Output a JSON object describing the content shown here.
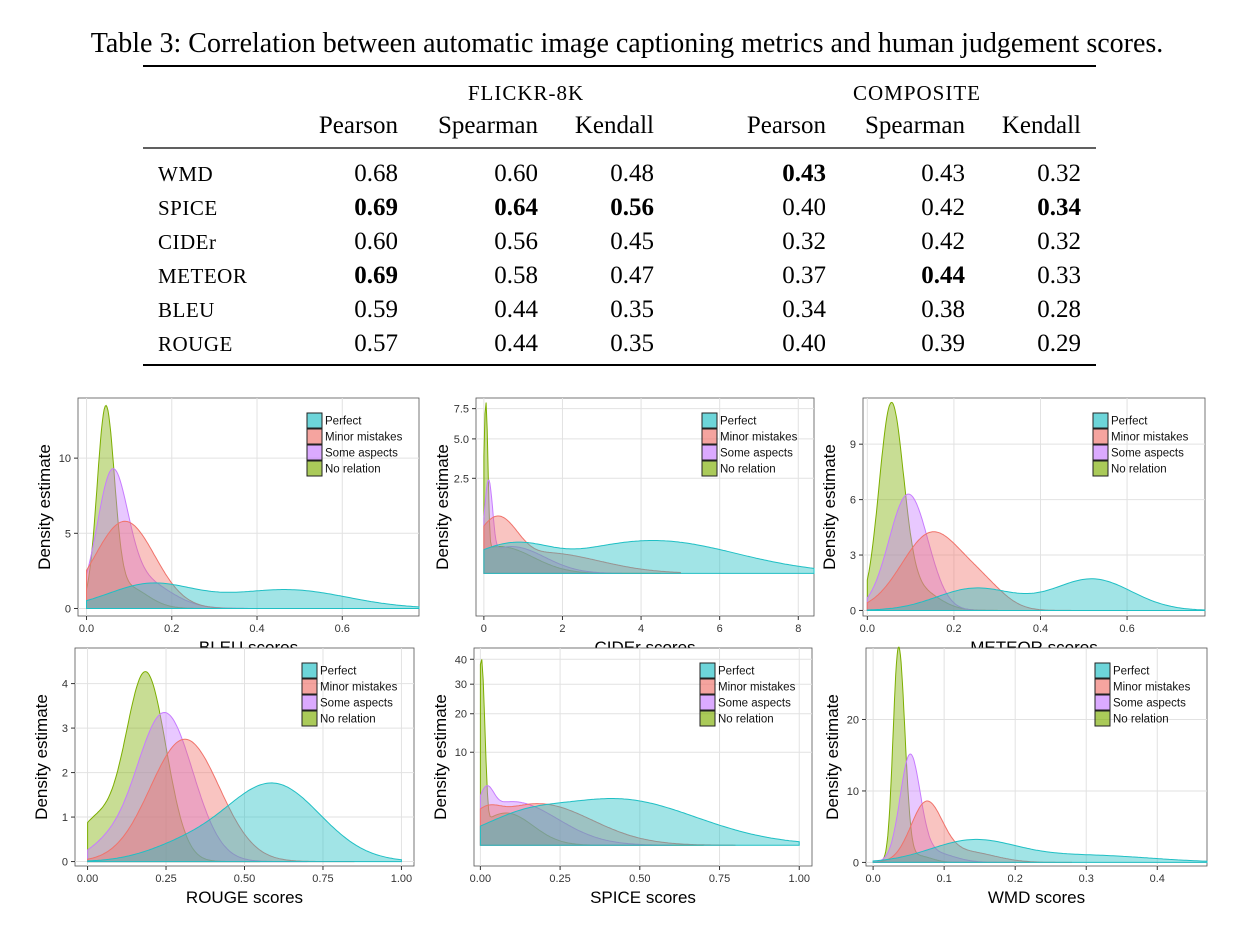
{
  "caption": "Table 3: Correlation between automatic image captioning metrics and human judgement scores.",
  "table": {
    "groups": [
      "FLICKR-8K",
      "COMPOSITE"
    ],
    "columns": [
      "Pearson",
      "Spearman",
      "Kendall",
      "Pearson",
      "Spearman",
      "Kendall"
    ],
    "rows": [
      {
        "metric": "WMD",
        "values": [
          "0.68",
          "0.60",
          "0.48",
          "0.43",
          "0.43",
          "0.32"
        ],
        "bold": [
          false,
          false,
          false,
          true,
          false,
          false
        ]
      },
      {
        "metric": "SPICE",
        "values": [
          "0.69",
          "0.64",
          "0.56",
          "0.40",
          "0.42",
          "0.34"
        ],
        "bold": [
          true,
          true,
          true,
          false,
          false,
          true
        ]
      },
      {
        "metric": "CIDEr",
        "values": [
          "0.60",
          "0.56",
          "0.45",
          "0.32",
          "0.42",
          "0.32"
        ],
        "bold": [
          false,
          false,
          false,
          false,
          false,
          false
        ]
      },
      {
        "metric": "METEOR",
        "values": [
          "0.69",
          "0.58",
          "0.47",
          "0.37",
          "0.44",
          "0.33"
        ],
        "bold": [
          true,
          false,
          false,
          false,
          true,
          false
        ]
      },
      {
        "metric": "BLEU",
        "values": [
          "0.59",
          "0.44",
          "0.35",
          "0.34",
          "0.38",
          "0.28"
        ],
        "bold": [
          false,
          false,
          false,
          false,
          false,
          false
        ]
      },
      {
        "metric": "ROUGE",
        "values": [
          "0.57",
          "0.44",
          "0.35",
          "0.40",
          "0.39",
          "0.29"
        ],
        "bold": [
          false,
          false,
          false,
          false,
          false,
          false
        ]
      }
    ]
  },
  "chart_data": [
    {
      "type": "area",
      "xlabel": "BLEU scores",
      "ylabel": "Density estimate",
      "xlim": [
        -0.02,
        0.78
      ],
      "ylim": [
        -0.5,
        14
      ],
      "xticks": [
        "0.0",
        "0.2",
        "0.4",
        "0.6"
      ],
      "yticks": [
        "0",
        "5",
        "10"
      ],
      "legend": "top-right",
      "grid": true,
      "series": [
        {
          "name": "Perfect",
          "color": "#1FBFC4",
          "peaks": [
            [
              0.15,
              1.6,
              0.1
            ],
            [
              0.47,
              1.25,
              0.14
            ]
          ],
          "xmax": 0.78
        },
        {
          "name": "Minor mistakes",
          "color": "#F0736B",
          "peaks": [
            [
              0.09,
              5.8,
              0.07
            ]
          ],
          "xmax": 0.55
        },
        {
          "name": "Some aspects",
          "color": "#C77CFF",
          "peaks": [
            [
              0.06,
              7.9,
              0.035
            ],
            [
              0.12,
              2.0,
              0.07
            ]
          ],
          "xmax": 0.45
        },
        {
          "name": "No relation",
          "color": "#7CAE00",
          "peaks": [
            [
              0.045,
              12.5,
              0.02
            ],
            [
              0.09,
              1.5,
              0.05
            ]
          ],
          "xmax": 0.35
        }
      ]
    },
    {
      "type": "area",
      "xlabel": "CIDEr scores",
      "ylabel": "Density estimate",
      "xlim": [
        -0.2,
        8.4
      ],
      "ylim": [
        -0.5,
        8.5
      ],
      "yscale": "sqrt",
      "xticks": [
        "0",
        "2",
        "4",
        "6",
        "8"
      ],
      "yticks": [
        "2.5",
        "5.0",
        "7.5"
      ],
      "legend": "top-right",
      "grid": true,
      "series": [
        {
          "name": "Perfect",
          "color": "#1FBFC4",
          "peaks": [
            [
              0.8,
              0.25,
              0.8
            ],
            [
              4.3,
              0.3,
              1.5
            ]
          ],
          "xmax": 8.4
        },
        {
          "name": "Minor mistakes",
          "color": "#F0736B",
          "peaks": [
            [
              0.35,
              0.85,
              0.4
            ],
            [
              1.5,
              0.12,
              1.0
            ]
          ],
          "xmax": 5.0
        },
        {
          "name": "Some aspects",
          "color": "#C77CFF",
          "peaks": [
            [
              0.12,
              2.3,
              0.08
            ],
            [
              0.7,
              0.2,
              0.6
            ]
          ],
          "xmax": 3.5
        },
        {
          "name": "No relation",
          "color": "#7CAE00",
          "peaks": [
            [
              0.05,
              8.0,
              0.04
            ],
            [
              0.4,
              0.2,
              0.6
            ]
          ],
          "xmax": 4.5
        }
      ]
    },
    {
      "type": "area",
      "xlabel": "METEOR scores",
      "ylabel": "Density estimate",
      "xlim": [
        -0.01,
        0.78
      ],
      "ylim": [
        -0.3,
        11.5
      ],
      "xticks": [
        "0.0",
        "0.2",
        "0.4",
        "0.6"
      ],
      "yticks": [
        "0",
        "3",
        "6",
        "9"
      ],
      "legend": "top-right",
      "grid": true,
      "series": [
        {
          "name": "Perfect",
          "color": "#1FBFC4",
          "peaks": [
            [
              0.25,
              1.2,
              0.09
            ],
            [
              0.52,
              1.7,
              0.09
            ]
          ],
          "xmax": 0.78
        },
        {
          "name": "Minor mistakes",
          "color": "#F0736B",
          "peaks": [
            [
              0.15,
              4.2,
              0.07
            ],
            [
              0.27,
              1.0,
              0.05
            ]
          ],
          "xmax": 0.5
        },
        {
          "name": "Some aspects",
          "color": "#C77CFF",
          "peaks": [
            [
              0.095,
              6.3,
              0.045
            ]
          ],
          "xmax": 0.35
        },
        {
          "name": "No relation",
          "color": "#7CAE00",
          "peaks": [
            [
              0.055,
              10.6,
              0.028
            ],
            [
              0.11,
              1.2,
              0.05
            ]
          ],
          "xmax": 0.3
        }
      ]
    },
    {
      "type": "area",
      "xlabel": "ROUGE scores",
      "ylabel": "Density estimate",
      "xlim": [
        -0.04,
        1.04
      ],
      "ylim": [
        -0.1,
        4.8
      ],
      "xticks": [
        "0.00",
        "0.25",
        "0.50",
        "0.75",
        "1.00"
      ],
      "yticks": [
        "0",
        "1",
        "2",
        "3",
        "4"
      ],
      "legend": "top-right",
      "grid": true,
      "series": [
        {
          "name": "Perfect",
          "color": "#1FBFC4",
          "peaks": [
            [
              0.59,
              1.75,
              0.15
            ],
            [
              0.3,
              0.3,
              0.12
            ]
          ],
          "xmax": 1.0
        },
        {
          "name": "Minor mistakes",
          "color": "#F0736B",
          "peaks": [
            [
              0.31,
              2.75,
              0.11
            ]
          ],
          "xmax": 0.85
        },
        {
          "name": "Some aspects",
          "color": "#C77CFF",
          "peaks": [
            [
              0.245,
              3.35,
              0.09
            ],
            [
              0.05,
              0.25,
              0.06
            ]
          ],
          "xmax": 0.7
        },
        {
          "name": "No relation",
          "color": "#7CAE00",
          "peaks": [
            [
              0.185,
              4.25,
              0.065
            ],
            [
              0.02,
              0.85,
              0.06
            ]
          ],
          "xmax": 0.55
        }
      ]
    },
    {
      "type": "area",
      "xlabel": "SPICE scores",
      "ylabel": "Density estimate",
      "xlim": [
        -0.02,
        1.04
      ],
      "ylim": [
        -0.5,
        45
      ],
      "yscale": "sqrt",
      "xticks": [
        "0.00",
        "0.25",
        "0.50",
        "0.75",
        "1.00"
      ],
      "yticks": [
        "10",
        "20",
        "30",
        "40"
      ],
      "legend": "top-right",
      "grid": true,
      "series": [
        {
          "name": "Perfect",
          "color": "#1FBFC4",
          "peaks": [
            [
              0.42,
              2.5,
              0.18
            ],
            [
              0.15,
              0.8,
              0.1
            ]
          ],
          "xmax": 1.0
        },
        {
          "name": "Minor mistakes",
          "color": "#F0736B",
          "peaks": [
            [
              0.18,
              2.0,
              0.12
            ],
            [
              0.02,
              1.0,
              0.04
            ]
          ],
          "xmax": 0.8
        },
        {
          "name": "Some aspects",
          "color": "#C77CFF",
          "peaks": [
            [
              0.1,
              2.2,
              0.1
            ],
            [
              0.02,
              2.5,
              0.02
            ]
          ],
          "xmax": 0.6
        },
        {
          "name": "No relation",
          "color": "#7CAE00",
          "peaks": [
            [
              0.003,
              40,
              0.008
            ],
            [
              0.08,
              1.2,
              0.06
            ]
          ],
          "xmax": 0.7
        }
      ]
    },
    {
      "type": "area",
      "xlabel": "WMD scores",
      "ylabel": "Density estimate",
      "xlim": [
        -0.01,
        0.47
      ],
      "ylim": [
        -0.5,
        30
      ],
      "xticks": [
        "0.0",
        "0.1",
        "0.2",
        "0.3",
        "0.4"
      ],
      "yticks": [
        "0",
        "10",
        "20"
      ],
      "legend": "top-right",
      "grid": true,
      "series": [
        {
          "name": "Perfect",
          "color": "#1FBFC4",
          "peaks": [
            [
              0.14,
              3.0,
              0.06
            ],
            [
              0.3,
              1.0,
              0.09
            ]
          ],
          "xmax": 0.47
        },
        {
          "name": "Minor mistakes",
          "color": "#F0736B",
          "peaks": [
            [
              0.075,
              8.0,
              0.022
            ],
            [
              0.13,
              1.5,
              0.04
            ]
          ],
          "xmax": 0.28
        },
        {
          "name": "Some aspects",
          "color": "#C77CFF",
          "peaks": [
            [
              0.052,
              14.2,
              0.014
            ],
            [
              0.08,
              1.5,
              0.03
            ]
          ],
          "xmax": 0.2
        },
        {
          "name": "No relation",
          "color": "#7CAE00",
          "peaks": [
            [
              0.038,
              24,
              0.008
            ],
            [
              0.032,
              8,
              0.006
            ],
            [
              0.06,
              1.0,
              0.02
            ]
          ],
          "xmax": 0.15
        }
      ]
    }
  ]
}
